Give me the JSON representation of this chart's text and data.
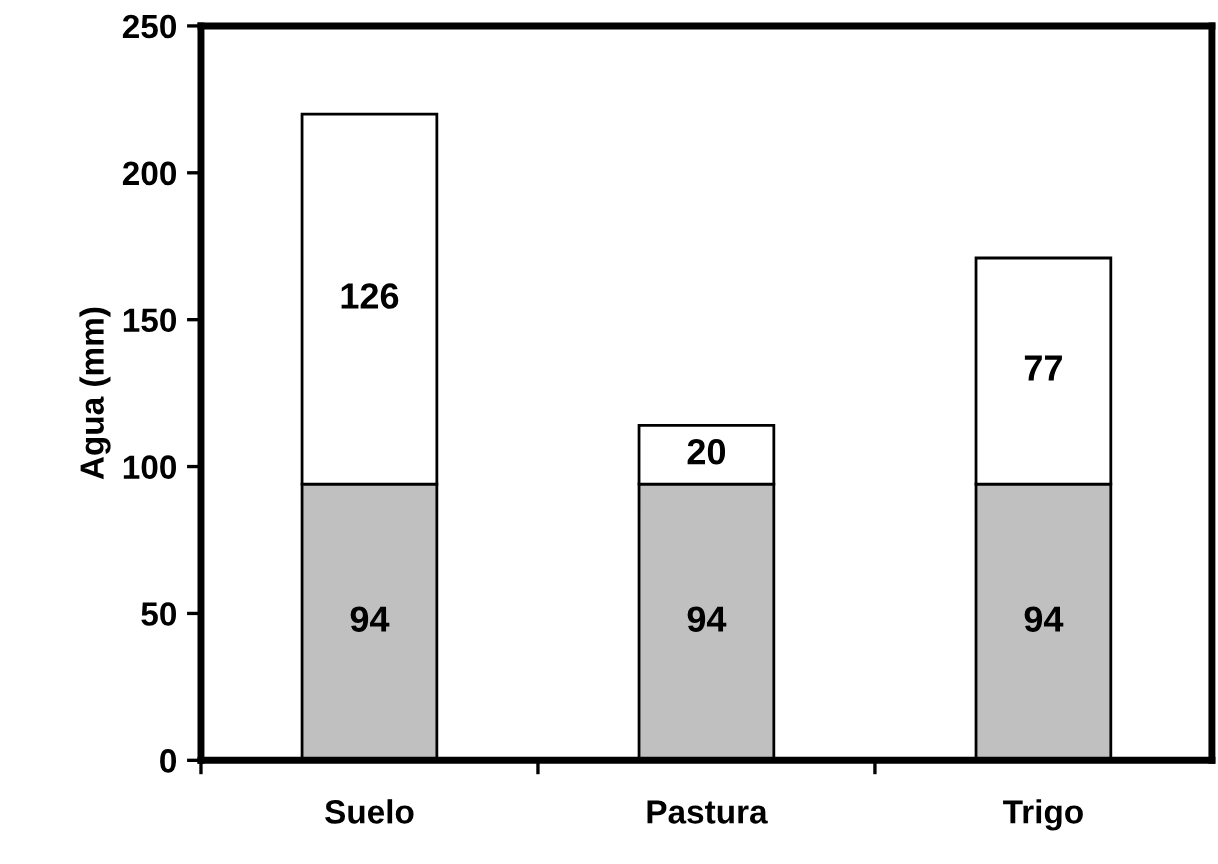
{
  "chart_data": {
    "type": "bar",
    "stacked": true,
    "ylabel": "Agua (mm)",
    "categories": [
      "Suelo",
      "Pastura",
      "Trigo"
    ],
    "series": [
      {
        "color": "#c0c0c0",
        "values": [
          94,
          94,
          94
        ]
      },
      {
        "color": "#ffffff",
        "values": [
          126,
          20,
          77
        ]
      }
    ],
    "data_labels": true,
    "ylim": [
      0,
      250
    ],
    "yticks": [
      0,
      50,
      100,
      150,
      200,
      250
    ],
    "grid": false,
    "legend": false
  }
}
